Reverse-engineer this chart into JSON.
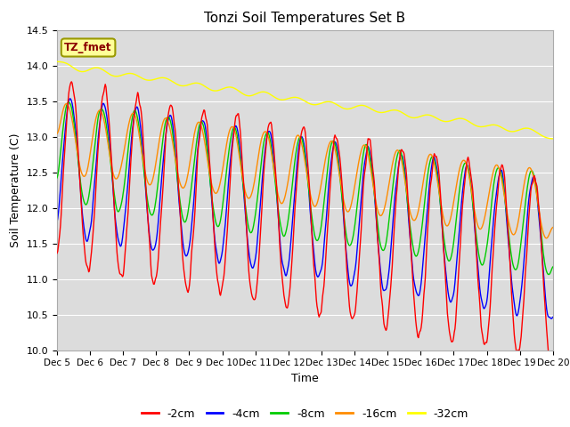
{
  "title": "Tonzi Soil Temperatures Set B",
  "xlabel": "Time",
  "ylabel": "Soil Temperature (C)",
  "ylim": [
    10.0,
    14.5
  ],
  "series_colors": {
    "-2cm": "#FF0000",
    "-4cm": "#0000FF",
    "-8cm": "#00CC00",
    "-16cm": "#FF8C00",
    "-32cm": "#FFFF00"
  },
  "annotation_text": "TZ_fmet",
  "annotation_color": "#8B0000",
  "annotation_bg": "#FFFF99",
  "plot_bg": "#DCDCDC",
  "x_ticks": [
    "Dec 5",
    "Dec 6",
    "Dec 7",
    "Dec 8",
    "Dec 9",
    "Dec 10",
    "Dec 11",
    "Dec 12",
    "Dec 13",
    "Dec 14",
    "Dec 15",
    "Dec 16",
    "Dec 17",
    "Dec 18",
    "Dec 19",
    "Dec 20"
  ],
  "n_points": 720
}
